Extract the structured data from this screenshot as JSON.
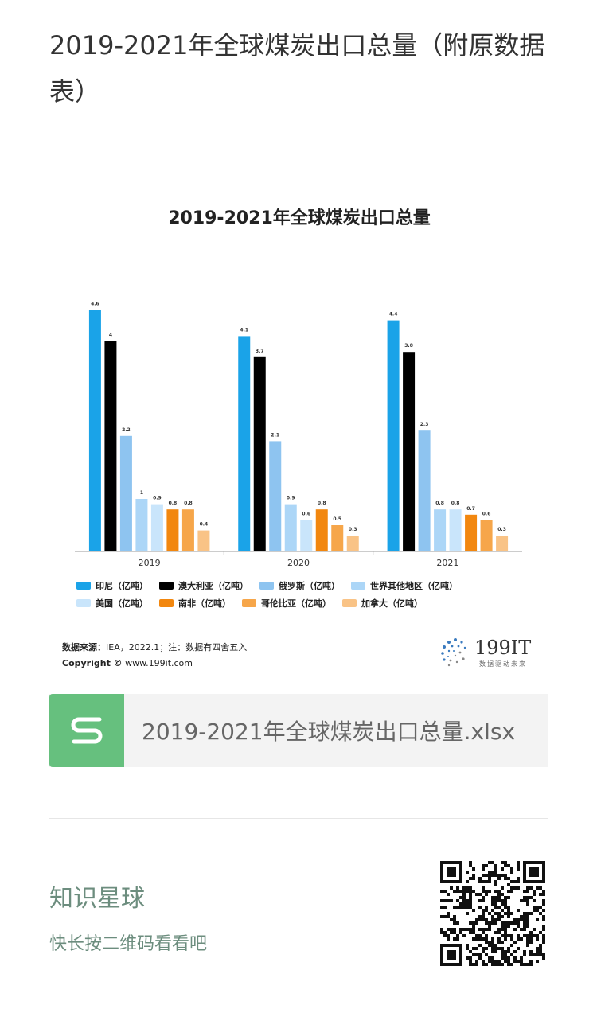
{
  "article": {
    "title": "2019-2021年全球煤炭出口总量（附原数据表）"
  },
  "chart_data": {
    "type": "bar",
    "title": "2019-2021年全球煤炭出口总量",
    "categories": [
      "2019",
      "2020",
      "2021"
    ],
    "series": [
      {
        "name": "印尼（亿吨）",
        "color": "#1aa3e8",
        "values": [
          4.6,
          4.1,
          4.4
        ]
      },
      {
        "name": "澳大利亚（亿吨）",
        "color": "#000000",
        "values": [
          4,
          3.7,
          3.8
        ]
      },
      {
        "name": "俄罗斯（亿吨）",
        "color": "#8ec4f0",
        "values": [
          2.2,
          2.1,
          2.3
        ]
      },
      {
        "name": "世界其他地区（亿吨）",
        "color": "#acd6f7",
        "values": [
          1,
          0.9,
          0.8
        ]
      },
      {
        "name": "美国（亿吨）",
        "color": "#c9e5fb",
        "values": [
          0.9,
          0.6,
          0.8
        ]
      },
      {
        "name": "南非（亿吨）",
        "color": "#f2870f",
        "values": [
          0.8,
          0.8,
          0.7
        ]
      },
      {
        "name": "哥伦比亚（亿吨）",
        "color": "#f6a64a",
        "values": [
          0.8,
          0.5,
          0.6
        ]
      },
      {
        "name": "加拿大（亿吨）",
        "color": "#f9c386",
        "values": [
          0.4,
          0.3,
          0.3
        ]
      }
    ],
    "ylim": [
      0,
      5
    ],
    "grid": false,
    "legend": "bottom"
  },
  "source": {
    "label": "数据来源：",
    "text": "IEA，2022.1；注：数据有四舍五入",
    "copyright_label": "Copyright ©",
    "copyright_url": "www.199it.com"
  },
  "logo": {
    "name": "199IT",
    "tagline": "数据驱动未来"
  },
  "file": {
    "name": "2019-2021年全球煤炭出口总量.xlsx",
    "icon": "spreadsheet-s-icon",
    "icon_color": "#66c07e"
  },
  "footer": {
    "title": "知识星球",
    "subtitle": "快长按二维码看看吧",
    "qr_icon": "qr-code"
  }
}
